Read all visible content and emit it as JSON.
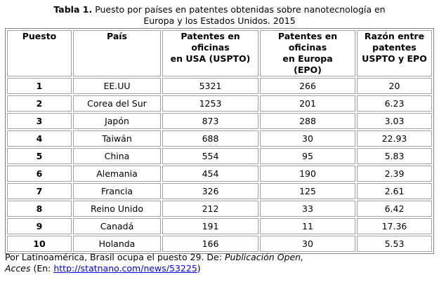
{
  "caption": {
    "label": "Tabla 1.",
    "text_line1": "Puesto por países en patentes obtenidas sobre nanotecnología en",
    "text_line2": "Europa y los Estados Unidos. 2015"
  },
  "table": {
    "headers": [
      [
        "Puesto"
      ],
      [
        "País"
      ],
      [
        "Patentes en",
        "oficinas",
        "en USA (USPTO)"
      ],
      [
        "Patentes en",
        "oficinas",
        "en Europa",
        "(EPO)"
      ],
      [
        "Razón entre",
        "patentes",
        "USPTO y EPO"
      ]
    ],
    "rows": [
      [
        "1",
        "EE.UU",
        "5321",
        "266",
        "20"
      ],
      [
        "2",
        "Corea del Sur",
        "1253",
        "201",
        "6.23"
      ],
      [
        "3",
        "Japón",
        "873",
        "288",
        "3.03"
      ],
      [
        "4",
        "Taiwán",
        "688",
        "30",
        "22.93"
      ],
      [
        "5",
        "China",
        "554",
        "95",
        "5.83"
      ],
      [
        "6",
        "Alemania",
        "454",
        "190",
        "2.39"
      ],
      [
        "7",
        "Francia",
        "326",
        "125",
        "2.61"
      ],
      [
        "8",
        "Reino Unido",
        "212",
        "33",
        "6.42"
      ],
      [
        "9",
        "Canadá",
        "191",
        "11",
        "17.36"
      ],
      [
        "10",
        "Holanda",
        "166",
        "30",
        "5.53"
      ]
    ]
  },
  "footnote": {
    "text1": "Por Latinoamérica, Brasil ocupa el puesto 29. De: ",
    "italic1": "Publicación Open,",
    "italic2": "Acces",
    "text2": " (En: ",
    "link": "http://statnano.com/news/53225",
    "text3": ")"
  }
}
